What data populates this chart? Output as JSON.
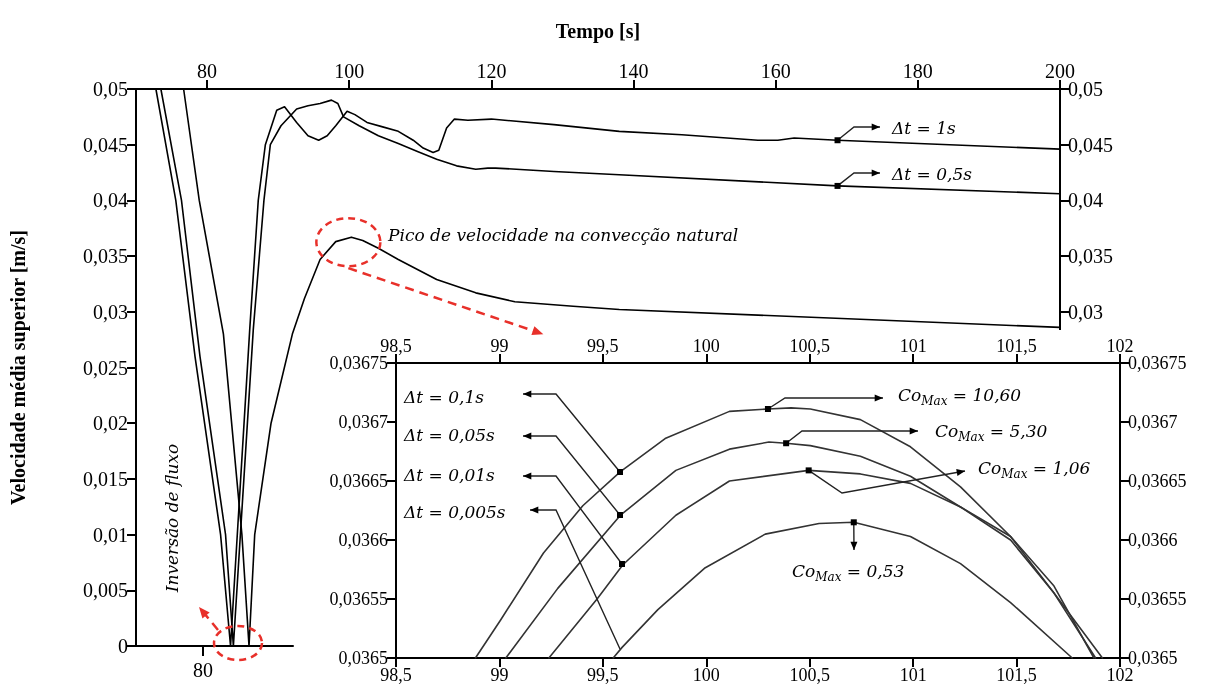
{
  "chart_data": [
    {
      "type": "line",
      "xlabel": "Tempo [s]",
      "ylabel": "Velocidade média superior [m/s]",
      "marker": "none",
      "xlim": [
        70,
        200
      ],
      "xticks": [
        80,
        100,
        120,
        140,
        160,
        180,
        200
      ],
      "ylim": [
        0,
        0.05
      ],
      "yticks": [
        0,
        {
          "value": 0.005,
          "label": "0,005"
        },
        {
          "value": 0.01,
          "label": "0,01"
        },
        {
          "value": 0.015,
          "label": "0,015"
        },
        {
          "value": 0.02,
          "label": "0,02"
        },
        {
          "value": 0.025,
          "label": "0,025"
        },
        {
          "value": 0.03,
          "label": "0,03"
        },
        {
          "value": 0.035,
          "label": "0,035"
        },
        {
          "value": 0.04,
          "label": "0,04"
        },
        {
          "value": 0.045,
          "label": "0,045"
        },
        {
          "value": 0.05,
          "label": "0,05"
        }
      ],
      "y2lim": [
        0,
        0.05
      ],
      "y2ticks": [
        {
          "value": 0.03,
          "label": "0,03"
        },
        {
          "value": 0.035,
          "label": "0,035"
        },
        {
          "value": 0.04,
          "label": "0,04"
        },
        {
          "value": 0.045,
          "label": "0,045"
        },
        {
          "value": 0.05,
          "label": "0,05"
        }
      ],
      "series": [
        {
          "color": "#000000",
          "x": [
            72.8,
            75.6,
            78.3,
            81.9,
            83.3,
            86.0,
            87.2,
            88.2,
            89.8,
            90.9,
            92.6,
            94.2,
            95.7,
            96.9,
            98.1,
            99.7,
            100.8,
            102.5,
            104.7,
            106.9,
            109.0,
            110.4,
            111.8,
            112.6,
            113.7,
            114.8,
            116.7,
            120.0,
            128.8,
            138.0,
            146.8,
            157.5,
            160.3,
            162.6,
            168.7,
            200
          ],
          "values": [
            0.05,
            0.04,
            0.026,
            0.01,
            0,
            0.0284,
            0.04,
            0.045,
            0.0481,
            0.0484,
            0.047,
            0.0458,
            0.0454,
            0.0458,
            0.0467,
            0.048,
            0.0477,
            0.047,
            0.0466,
            0.0462,
            0.0454,
            0.0447,
            0.0443,
            0.0445,
            0.0465,
            0.0473,
            0.0472,
            0.0473,
            0.0468,
            0.0462,
            0.0459,
            0.0454,
            0.0454,
            0.0456,
            0.0454,
            0.0446
          ]
        },
        {
          "color": "#000000",
          "x": [
            73.5,
            76.4,
            79.0,
            82.6,
            83.7,
            86.5,
            88.0,
            88.9,
            90.4,
            92.6,
            94.2,
            95.9,
            97.5,
            98.4,
            99.2,
            101.4,
            104.1,
            106.9,
            109.6,
            112.3,
            115.1,
            117.8,
            119.5,
            120.6,
            128.8,
            138.0,
            168.7,
            200
          ],
          "values": [
            0.05,
            0.04,
            0.026,
            0.01,
            0,
            0.0284,
            0.04,
            0.045,
            0.0467,
            0.0482,
            0.0485,
            0.0487,
            0.049,
            0.0487,
            0.0475,
            0.0467,
            0.0458,
            0.0451,
            0.0444,
            0.0437,
            0.0431,
            0.0428,
            0.0429,
            0.0429,
            0.0426,
            0.0423,
            0.0413,
            0.0406
          ]
        },
        {
          "color": "#000000",
          "x": [
            76.7,
            78.9,
            82.3,
            84.9,
            85.9,
            86.7,
            89.0,
            92.0,
            93.7,
            95.9,
            98.1,
            100.3,
            101.9,
            104.1,
            106.9,
            112.3,
            117.8,
            123.3,
            131.5,
            138.0,
            169.3,
            200
          ],
          "values": [
            0.05,
            0.04,
            0.028,
            0.01,
            0,
            0.01,
            0.02,
            0.028,
            0.0312,
            0.0347,
            0.0363,
            0.0367,
            0.0364,
            0.0357,
            0.0347,
            0.0329,
            0.0317,
            0.0309,
            0.0305,
            0.0302,
            0.0294,
            0.0286
          ]
        }
      ],
      "annotations": [
        {
          "text": "Pico de velocidade na convecção natural",
          "x": 100.3,
          "y": 0.0367
        },
        "Inversão de fluxo",
        {
          "text": "Δt = 1s",
          "x": 168.7,
          "y": 0.0454
        },
        {
          "text": "Δt = 0,5s",
          "x": 168.7,
          "y": 0.0413
        },
        "80"
      ]
    },
    {
      "type": "line",
      "marker": "none",
      "xlim": [
        98.5,
        102
      ],
      "xticks": [
        {
          "value": 98.5,
          "label": "98,5"
        },
        99,
        {
          "value": 99.5,
          "label": "99,5"
        },
        100,
        {
          "value": 100.5,
          "label": "100,5"
        },
        101,
        {
          "value": 101.5,
          "label": "101,5"
        },
        102
      ],
      "x2lim": [
        98.5,
        102
      ],
      "x2ticks": [
        {
          "value": 98.5,
          "label": "98,5"
        },
        99,
        {
          "value": 99.5,
          "label": "99,5"
        },
        100,
        {
          "value": 100.5,
          "label": "100,5"
        },
        101,
        {
          "value": 101.5,
          "label": "101,5"
        },
        102
      ],
      "ylim": [
        0.0365,
        0.03675
      ],
      "yticks": [
        {
          "value": 0.0365,
          "label": "0,0365"
        },
        {
          "value": 0.03655,
          "label": "0,03655"
        },
        {
          "value": 0.0366,
          "label": "0,0366"
        },
        {
          "value": 0.03665,
          "label": "0,03665"
        },
        {
          "value": 0.0367,
          "label": "0,0367"
        },
        {
          "value": 0.03675,
          "label": "0,03675"
        }
      ],
      "y2lim": [
        0.0365,
        0.03675
      ],
      "y2ticks": [
        {
          "value": 0.0365,
          "label": "0,0365"
        },
        {
          "value": 0.03655,
          "label": "0,03655"
        },
        {
          "value": 0.0366,
          "label": "0,0366"
        },
        {
          "value": 0.03665,
          "label": "0,03665"
        },
        {
          "value": 0.0367,
          "label": "0,0367"
        },
        {
          "value": 0.03675,
          "label": "0,03675"
        }
      ],
      "series": [
        {
          "color": "#333333",
          "x": [
            98.884,
            99.005,
            99.213,
            99.403,
            99.585,
            99.801,
            100.112,
            100.298,
            100.41,
            100.503,
            100.745,
            100.987,
            101.229,
            101.471,
            101.681,
            101.915
          ],
          "values": [
            0.0365,
            0.036532,
            0.036589,
            0.036629,
            0.036658,
            0.036686,
            0.036709,
            0.036711,
            0.036712,
            0.036711,
            0.036702,
            0.036679,
            0.036645,
            0.036603,
            0.036555,
            0.0365
          ]
        },
        {
          "color": "#333333",
          "x": [
            99.031,
            99.282,
            99.585,
            99.853,
            100.112,
            100.303,
            100.386,
            100.503,
            100.745,
            100.987,
            101.229,
            101.471,
            101.681,
            101.882
          ],
          "values": [
            0.0365,
            0.036559,
            0.036621,
            0.036659,
            0.036677,
            0.036683,
            0.036682,
            0.03668,
            0.036671,
            0.036654,
            0.036628,
            0.0366,
            0.036555,
            0.0365
          ]
        },
        {
          "color": "#333333",
          "x": [
            99.239,
            99.472,
            99.597,
            99.853,
            100.112,
            100.495,
            100.745,
            100.987,
            101.229,
            101.471,
            101.681,
            101.874
          ],
          "values": [
            0.0365,
            0.03655,
            0.036579,
            0.036621,
            0.03665,
            0.036659,
            0.036656,
            0.036648,
            0.036628,
            0.036603,
            0.036561,
            0.0365
          ]
        },
        {
          "color": "#333333",
          "x": [
            99.55,
            99.593,
            99.766,
            99.991,
            100.285,
            100.545,
            100.713,
            100.987,
            101.229,
            101.471,
            101.769
          ],
          "values": [
            0.0365,
            0.036509,
            0.036541,
            0.036576,
            0.036605,
            0.036614,
            0.036615,
            0.036603,
            0.03658,
            0.036547,
            0.0365
          ]
        }
      ],
      "annotations": [
        "Δt = 0,1s",
        "Δt = 0,05s",
        "Δt = 0,01s",
        "Δt = 0,005s",
        {
          "text": "Co$_{Max}$ = 10,60",
          "x": 100.298,
          "y": 0.036711
        },
        {
          "text": "Co$_{Max}$ = 5,30",
          "x": 100.386,
          "y": 0.036682
        },
        {
          "text": "Co$_{Max}$ = 1,06",
          "x": 100.495,
          "y": 0.036659
        },
        {
          "text": "Co$_{Max}$ = 0,53",
          "x": 100.713,
          "y": 0.036615
        }
      ]
    }
  ]
}
